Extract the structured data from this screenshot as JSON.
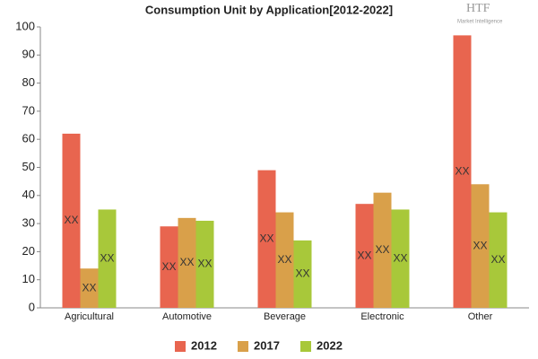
{
  "chart_data": {
    "type": "bar",
    "title": "Consumption Unit by  Application[2012-2022]",
    "logo": [
      "HTF",
      "Market Intelligence"
    ],
    "categories": [
      "Agricultural",
      "Automotive",
      "Beverage",
      "Electronic",
      "Other"
    ],
    "series": [
      {
        "name": "2012",
        "color": "#e8654f",
        "values": [
          62,
          29,
          49,
          37,
          97
        ],
        "value_labels": [
          "XX",
          "XX",
          "XX",
          "XX",
          "XX"
        ]
      },
      {
        "name": "2017",
        "color": "#d9a04a",
        "values": [
          14,
          32,
          34,
          41,
          44
        ],
        "value_labels": [
          "XX",
          "XX",
          "XX",
          "XX",
          "XX"
        ]
      },
      {
        "name": "2022",
        "color": "#a8c83a",
        "values": [
          35,
          31,
          24,
          35,
          34
        ],
        "value_labels": [
          "XX",
          "XX",
          "XX",
          "XX",
          "XX"
        ]
      }
    ],
    "ylim": [
      0,
      100
    ],
    "yticks": [
      0,
      10,
      20,
      30,
      40,
      50,
      60,
      70,
      80,
      90,
      100
    ],
    "grid": false,
    "legend": "bottom"
  }
}
